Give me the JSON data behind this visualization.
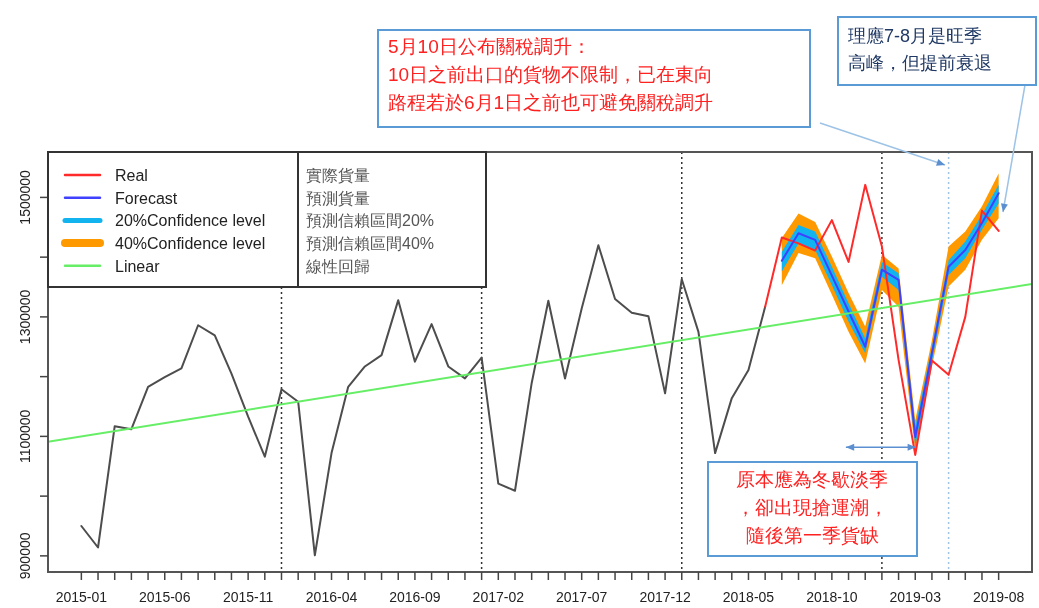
{
  "chart_data": {
    "type": "line",
    "xlim": [
      "2014-11",
      "2019-10"
    ],
    "ylim": [
      873000,
      1576000
    ],
    "xticks": [
      "2015-01",
      {
        "value": "2015-02",
        "label": null
      },
      {
        "value": "2015-03",
        "label": null
      },
      {
        "value": "2015-04",
        "label": null
      },
      {
        "value": "2015-05",
        "label": null
      },
      "2015-06",
      {
        "value": "2015-07",
        "label": null
      },
      {
        "value": "2015-08",
        "label": null
      },
      {
        "value": "2015-09",
        "label": null
      },
      {
        "value": "2015-10",
        "label": null
      },
      "2015-11",
      {
        "value": "2015-12",
        "label": null
      },
      {
        "value": "2016-01",
        "label": null
      },
      {
        "value": "2016-02",
        "label": null
      },
      {
        "value": "2016-03",
        "label": null
      },
      "2016-04",
      {
        "value": "2016-05",
        "label": null
      },
      {
        "value": "2016-06",
        "label": null
      },
      {
        "value": "2016-07",
        "label": null
      },
      {
        "value": "2016-08",
        "label": null
      },
      "2016-09",
      {
        "value": "2016-10",
        "label": null
      },
      {
        "value": "2016-11",
        "label": null
      },
      {
        "value": "2016-12",
        "label": null
      },
      {
        "value": "2017-01",
        "label": null
      },
      "2017-02",
      {
        "value": "2017-03",
        "label": null
      },
      {
        "value": "2017-04",
        "label": null
      },
      {
        "value": "2017-05",
        "label": null
      },
      {
        "value": "2017-06",
        "label": null
      },
      "2017-07",
      {
        "value": "2017-08",
        "label": null
      },
      {
        "value": "2017-09",
        "label": null
      },
      {
        "value": "2017-10",
        "label": null
      },
      {
        "value": "2017-11",
        "label": null
      },
      "2017-12",
      {
        "value": "2018-01",
        "label": null
      },
      {
        "value": "2018-02",
        "label": null
      },
      {
        "value": "2018-03",
        "label": null
      },
      {
        "value": "2018-04",
        "label": null
      },
      "2018-05",
      {
        "value": "2018-06",
        "label": null
      },
      {
        "value": "2018-07",
        "label": null
      },
      {
        "value": "2018-08",
        "label": null
      },
      {
        "value": "2018-09",
        "label": null
      },
      "2018-10",
      {
        "value": "2018-11",
        "label": null
      },
      {
        "value": "2018-12",
        "label": null
      },
      {
        "value": "2019-01",
        "label": null
      },
      {
        "value": "2019-02",
        "label": null
      },
      "2019-03",
      {
        "value": "2019-04",
        "label": null
      },
      {
        "value": "2019-05",
        "label": null
      },
      {
        "value": "2019-06",
        "label": null
      },
      {
        "value": "2019-07",
        "label": null
      },
      "2019-08"
    ],
    "yticks": [
      900000,
      {
        "value": 1000000,
        "label": null
      },
      1100000,
      {
        "value": 1200000,
        "label": null
      },
      1300000,
      {
        "value": 1400000,
        "label": null
      },
      1500000
    ],
    "legend": "top left",
    "line_style": "solid",
    "series": [
      {
        "type": "line",
        "color": "#4d4d4d",
        "x": [
          "2015-01",
          "2015-02",
          "2015-03",
          "2015-04",
          "2015-05",
          "2015-06",
          "2015-07",
          "2015-08",
          "2015-09",
          "2015-10",
          "2015-11",
          "2015-12",
          "2016-01",
          "2016-02",
          "2016-03",
          "2016-04",
          "2016-05",
          "2016-06",
          "2016-07",
          "2016-08",
          "2016-09",
          "2016-10",
          "2016-11",
          "2016-12",
          "2017-01",
          "2017-02",
          "2017-03",
          "2017-04",
          "2017-05",
          "2017-06",
          "2017-07",
          "2017-08",
          "2017-09",
          "2017-10",
          "2017-11",
          "2017-12",
          "2018-01",
          "2018-02",
          "2018-03",
          "2018-04",
          "2018-05",
          "2018-06"
        ],
        "values": [
          950000,
          914000,
          1117000,
          1112000,
          1183000,
          1199000,
          1214000,
          1286000,
          1269000,
          1205000,
          1133000,
          1066000,
          1179000,
          1158000,
          901000,
          1072000,
          1183000,
          1217000,
          1236000,
          1328000,
          1225000,
          1288000,
          1217000,
          1197000,
          1232000,
          1021000,
          1009000,
          1189000,
          1327000,
          1197000,
          1314000,
          1420000,
          1330000,
          1307000,
          1301000,
          1172000,
          1363000,
          1275000,
          1072000,
          1164000,
          1211000,
          1317000
        ]
      },
      {
        "type": "line",
        "name": "Real",
        "color": "#ff2a2a",
        "x": [
          "2018-06",
          "2018-07",
          "2018-08",
          "2018-09",
          "2018-10",
          "2018-11",
          "2018-12",
          "2019-01",
          "2019-02",
          "2019-03",
          "2019-04",
          "2019-05",
          "2019-06",
          "2019-07",
          "2019-08"
        ],
        "values": [
          1317000,
          1433000,
          1423000,
          1411000,
          1462000,
          1392000,
          1521000,
          1418000,
          1228000,
          1069000,
          1227000,
          1203000,
          1300000,
          1478000,
          1444000
        ]
      },
      {
        "type": "line",
        "name": "Forecast",
        "color": "#4040ff",
        "x": [
          "2018-07",
          "2018-08",
          "2018-09",
          "2018-10",
          "2018-11",
          "2018-12",
          "2019-01",
          "2019-02",
          "2019-03",
          "2019-04",
          "2019-05",
          "2019-06",
          "2019-07",
          "2019-08"
        ],
        "values": [
          1394000,
          1440000,
          1429000,
          1369000,
          1309000,
          1250000,
          1379000,
          1362000,
          1099000,
          1239000,
          1384000,
          1412000,
          1457000,
          1507000
        ]
      },
      {
        "type": "line",
        "name": "20%Confidence level",
        "color": "#12b4f0",
        "x": [
          "2018-07",
          "2018-08",
          "2018-09",
          "2018-10",
          "2018-11",
          "2018-12",
          "2019-01",
          "2019-02",
          "2019-03",
          "2019-04",
          "2019-05",
          "2019-06",
          "2019-07",
          "2019-08"
        ],
        "values": [
          null,
          null,
          null,
          null,
          null,
          null,
          null,
          null,
          null,
          null,
          null,
          null,
          null,
          null
        ],
        "lower": [
          1376000,
          1423000,
          1412000,
          1353000,
          1292000,
          1239000,
          1367000,
          1345000,
          1083000,
          1225000,
          1370000,
          1398000,
          1446000,
          1490000
        ],
        "upper": [
          1409000,
          1454000,
          1443000,
          1384000,
          1323000,
          1264000,
          1392000,
          1373000,
          1116000,
          1250000,
          1395000,
          1426000,
          1471000,
          1521000
        ]
      },
      {
        "type": "line",
        "name": "40%Confidence level",
        "color": "#ff9900",
        "x": [
          "2018-07",
          "2018-08",
          "2018-09",
          "2018-10",
          "2018-11",
          "2018-12",
          "2019-01",
          "2019-02",
          "2019-03",
          "2019-04",
          "2019-05",
          "2019-06",
          "2019-07",
          "2019-08"
        ],
        "values": [
          null,
          null,
          null,
          null,
          null,
          null,
          null,
          null,
          null,
          null,
          null,
          null,
          null,
          null
        ],
        "lower": [
          1353000,
          1407000,
          1398000,
          1337000,
          1275000,
          1222000,
          1345000,
          1317000,
          1074000,
          1217000,
          1351000,
          1379000,
          1429000,
          1465000
        ],
        "upper": [
          1432000,
          1473000,
          1459000,
          1401000,
          1340000,
          1284000,
          1404000,
          1381000,
          1127000,
          1261000,
          1418000,
          1443000,
          1485000,
          1540000
        ]
      },
      {
        "type": "line",
        "name": "Linear",
        "color": "#66ee66",
        "x": [
          "2014-11",
          "2019-10"
        ],
        "values": [
          1091000,
          1355000
        ]
      }
    ],
    "ref_lines": [
      {
        "axis": "x",
        "value": "2016-01",
        "color": "#333333",
        "line_style": "dotted"
      },
      {
        "axis": "x",
        "value": "2017-01",
        "color": "#333333",
        "line_style": "dotted"
      },
      {
        "axis": "x",
        "value": "2018-01",
        "color": "#333333",
        "line_style": "dotted"
      },
      {
        "axis": "x",
        "value": "2019-01",
        "color": "#333333",
        "line_style": "dotted"
      },
      {
        "axis": "x",
        "value": "2019-05",
        "color": "#9dc3e6",
        "line_style": "dotted"
      }
    ],
    "annotations": [
      "實際貨量",
      "預測貨量",
      "預測信賴區間20%",
      "預測信賴區間40%",
      "線性回歸",
      "5月10日公布關稅調升：10日之前出口的貨物不限制，已在東向路程若於6月1日之前也可避免關稅調升",
      "理應7-8月是旺季高峰，但提前衰退",
      {
        "text": "原本應為冬歇淡季，卻出現搶運潮，隨後第一季貨缺",
        "x": "2019-01",
        "y": 1082000
      }
    ]
  }
}
